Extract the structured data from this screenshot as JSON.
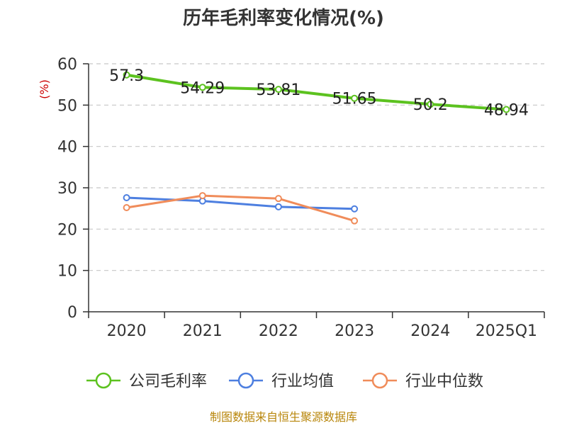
{
  "chart_data": {
    "type": "line",
    "title": "历年毛利率变化情况(%)",
    "ylabel": "(%)",
    "xlabel": "",
    "categories": [
      "2020",
      "2021",
      "2022",
      "2023",
      "2024",
      "2025Q1"
    ],
    "y_ticks": [
      "0",
      "10",
      "20",
      "30",
      "40",
      "50",
      "60"
    ],
    "ylim": [
      0,
      60
    ],
    "grid": true,
    "legend_position": "bottom",
    "series": [
      {
        "name": "公司毛利率",
        "color": "#5cc21f",
        "values": [
          57.3,
          54.29,
          53.81,
          51.65,
          50.2,
          48.94
        ],
        "labels": [
          "57.3",
          "54.29",
          "53.81",
          "51.65",
          "50.2",
          "48.94"
        ],
        "line_width": 4
      },
      {
        "name": "行业均值",
        "color": "#4d7fe0",
        "values": [
          27.6,
          26.8,
          25.4,
          24.9,
          null,
          null
        ],
        "line_width": 3
      },
      {
        "name": "行业中位数",
        "color": "#f08c5a",
        "values": [
          25.2,
          28.1,
          27.4,
          22.0,
          null,
          null
        ],
        "line_width": 3
      }
    ]
  },
  "footer": {
    "source": "制图数据来自恒生聚源数据库"
  }
}
